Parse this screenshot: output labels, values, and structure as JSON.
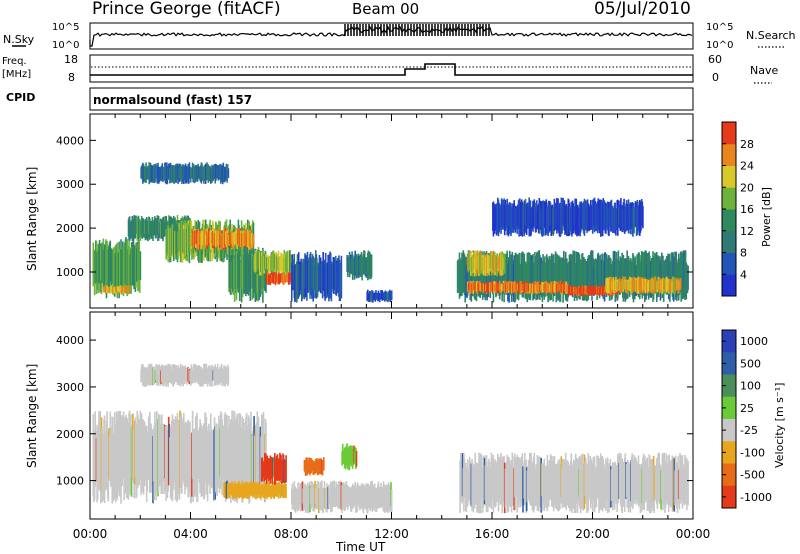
{
  "header": {
    "station": "Prince George (fitACF)",
    "beam": "Beam 00",
    "date": "05/Jul/2010"
  },
  "panels": {
    "nsky": {
      "label": "N.Sky",
      "ticks_left": [
        "10^5",
        "10^0"
      ],
      "ticks_right": [
        "10^5",
        "10^0"
      ],
      "right_label": "N.Search"
    },
    "freq": {
      "label_line1": "Freq.",
      "label_line2": "[MHz]",
      "ticks_left": [
        "18",
        "8"
      ],
      "ticks_right": [
        "60",
        "0"
      ],
      "right_label": "Nave"
    },
    "cpid": {
      "label": "CPID",
      "value": "normalsound (fast) 157"
    }
  },
  "colors": {
    "power": [
      "#2233cc",
      "#2255b8",
      "#2f7a74",
      "#2e8a5e",
      "#6db33b",
      "#d8c829",
      "#e8851c",
      "#e43a1a"
    ],
    "velocity_gray": "#c2c2c2",
    "ground_scatter": "#bebebe"
  },
  "chart_data": [
    {
      "type": "heatmap",
      "title": "",
      "xlabel": "Time UT",
      "ylabel": "Slant Range [km]",
      "x_ticks": [
        "00:00",
        "04:00",
        "08:00",
        "12:00",
        "16:00",
        "20:00",
        "00:00"
      ],
      "y_ticks": [
        "1000",
        "2000",
        "3000",
        "4000"
      ],
      "xlim_hours": [
        0,
        24
      ],
      "ylim_km": [
        180,
        4600
      ],
      "colorbar_label": "Power [dB]",
      "colorbar_ticks": [
        "4",
        "8",
        "12",
        "16",
        "20",
        "24",
        "28"
      ],
      "colorbar_range": [
        0,
        30
      ],
      "regions": [
        {
          "t0": 0.1,
          "t1": 2.0,
          "r0": 400,
          "r1": 1800,
          "level": 14
        },
        {
          "t0": 0.5,
          "t1": 1.6,
          "r0": 500,
          "r1": 700,
          "level": 22
        },
        {
          "t0": 1.5,
          "t1": 4.0,
          "r0": 1700,
          "r1": 2300,
          "level": 12
        },
        {
          "t0": 2.0,
          "t1": 5.5,
          "r0": 3000,
          "r1": 3500,
          "level": 8
        },
        {
          "t0": 3.0,
          "t1": 6.5,
          "r0": 1200,
          "r1": 2200,
          "level": 16
        },
        {
          "t0": 4.0,
          "t1": 6.5,
          "r0": 1500,
          "r1": 2000,
          "level": 24
        },
        {
          "t0": 5.5,
          "t1": 7.0,
          "r0": 300,
          "r1": 1600,
          "level": 13
        },
        {
          "t0": 6.5,
          "t1": 8.0,
          "r0": 900,
          "r1": 1500,
          "level": 18
        },
        {
          "t0": 7.0,
          "t1": 8.3,
          "r0": 700,
          "r1": 1000,
          "level": 27
        },
        {
          "t0": 8.0,
          "t1": 10.0,
          "r0": 300,
          "r1": 1500,
          "level": 6
        },
        {
          "t0": 10.2,
          "t1": 11.2,
          "r0": 800,
          "r1": 1500,
          "level": 10
        },
        {
          "t0": 11.0,
          "t1": 12.0,
          "r0": 300,
          "r1": 600,
          "level": 5
        },
        {
          "t0": 14.6,
          "t1": 23.8,
          "r0": 300,
          "r1": 1500,
          "level": 11
        },
        {
          "t0": 15.0,
          "t1": 19.0,
          "r0": 500,
          "r1": 800,
          "level": 25
        },
        {
          "t0": 19.0,
          "t1": 21.0,
          "r0": 450,
          "r1": 700,
          "level": 28
        },
        {
          "t0": 15.0,
          "t1": 16.5,
          "r0": 900,
          "r1": 1500,
          "level": 20
        },
        {
          "t0": 20.5,
          "t1": 23.5,
          "r0": 500,
          "r1": 900,
          "level": 22
        },
        {
          "t0": 16.0,
          "t1": 22.0,
          "r0": 1800,
          "r1": 2700,
          "level": 4
        }
      ]
    },
    {
      "type": "heatmap",
      "title": "",
      "xlabel": "Time UT",
      "ylabel": "Slant Range [km]",
      "x_ticks": [
        "00:00",
        "04:00",
        "08:00",
        "12:00",
        "16:00",
        "20:00",
        "00:00"
      ],
      "y_ticks": [
        "1000",
        "2000",
        "3000",
        "4000"
      ],
      "xlim_hours": [
        0,
        24
      ],
      "ylim_km": [
        180,
        4600
      ],
      "colorbar_label": "Velocity [m s⁻¹]",
      "colorbar_ticks": [
        "1000",
        "500",
        "100",
        "25",
        "-25",
        "-100",
        "-500",
        "-1000"
      ],
      "colorbar_colors": [
        "#2a3fb8",
        "#2f5ea8",
        "#4a8f5a",
        "#6acb36",
        "#c8c8c8",
        "#e8a61e",
        "#e86c18",
        "#e43a1a"
      ],
      "regions": [
        {
          "t0": 0.1,
          "t1": 7.0,
          "r0": 500,
          "r1": 2500,
          "color": "#c8c8c8"
        },
        {
          "t0": 2.0,
          "t1": 5.5,
          "r0": 3000,
          "r1": 3500,
          "color": "#c8c8c8"
        },
        {
          "t0": 5.3,
          "t1": 7.8,
          "r0": 600,
          "r1": 1000,
          "color": "#e8a61e"
        },
        {
          "t0": 6.8,
          "t1": 7.8,
          "r0": 900,
          "r1": 1600,
          "color": "#e43a1a"
        },
        {
          "t0": 8.5,
          "t1": 9.3,
          "r0": 1100,
          "r1": 1500,
          "color": "#e86c18"
        },
        {
          "t0": 10.0,
          "t1": 10.6,
          "r0": 1200,
          "r1": 1800,
          "color": "#6acb36"
        },
        {
          "t0": 8.0,
          "t1": 12.0,
          "r0": 300,
          "r1": 1000,
          "color": "#c8c8c8"
        },
        {
          "t0": 14.7,
          "t1": 23.8,
          "r0": 300,
          "r1": 1600,
          "color": "#c8c8c8"
        }
      ]
    }
  ]
}
